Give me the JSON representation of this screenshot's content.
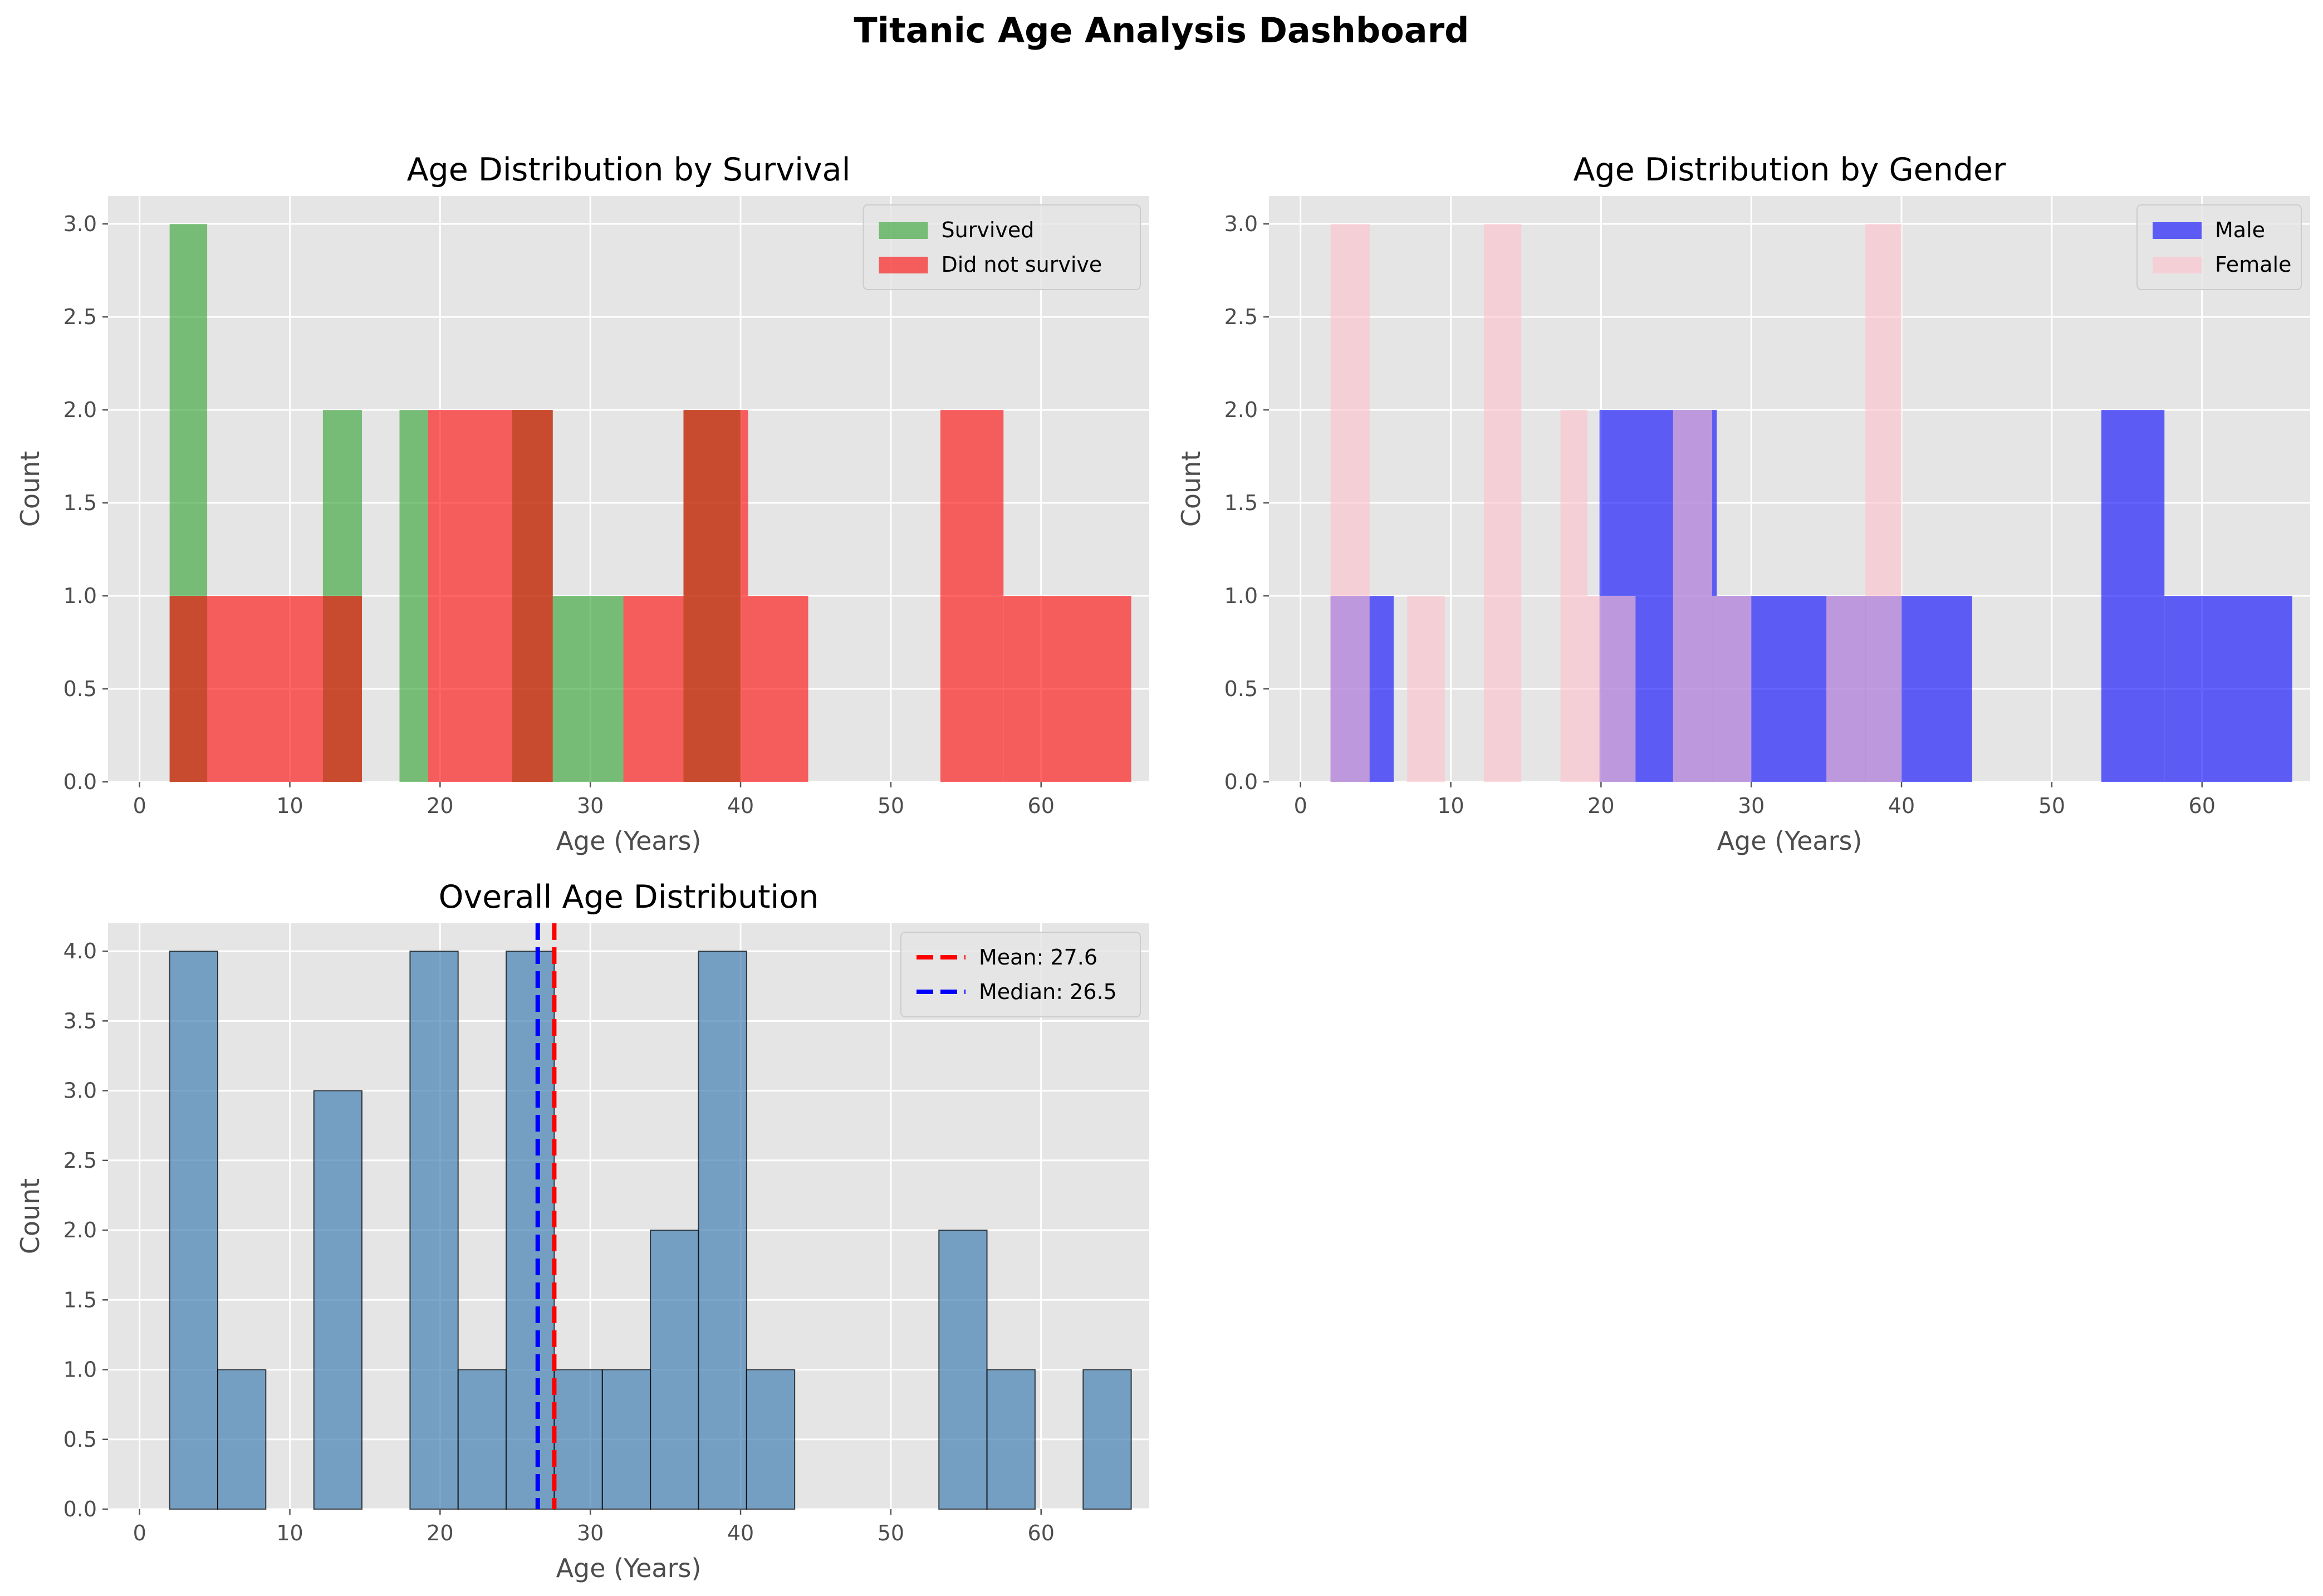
{
  "dashboard": {
    "title": "Titanic Age Analysis Dashboard"
  },
  "chart_data": [
    {
      "id": "survival",
      "type": "bar",
      "title": "Age Distribution by Survival",
      "xlabel": "Age (Years)",
      "ylabel": "Count",
      "xlim": [
        -2.1,
        67.2
      ],
      "ylim": [
        0,
        3.15
      ],
      "xticks": [
        0,
        10,
        20,
        30,
        40,
        50,
        60
      ],
      "yticks": [
        0.0,
        0.5,
        1.0,
        1.5,
        2.0,
        2.5,
        3.0
      ],
      "grid": true,
      "legend_position": "top-right",
      "series": [
        {
          "name": "Survived",
          "color": "#2ca02c",
          "opacity": 0.6,
          "bins": [
            {
              "x0": 2.0,
              "x1": 4.5,
              "count": 3
            },
            {
              "x0": 12.2,
              "x1": 14.8,
              "count": 2
            },
            {
              "x0": 17.3,
              "x1": 19.2,
              "count": 2
            },
            {
              "x0": 24.8,
              "x1": 27.5,
              "count": 2
            },
            {
              "x0": 27.5,
              "x1": 32.2,
              "count": 1
            },
            {
              "x0": 36.2,
              "x1": 40.0,
              "count": 2
            }
          ]
        },
        {
          "name": "Did not survive",
          "color": "#ff0000",
          "opacity": 0.6,
          "bins": [
            {
              "x0": 2.0,
              "x1": 12.2,
              "count": 1
            },
            {
              "x0": 12.2,
              "x1": 14.8,
              "count": 1
            },
            {
              "x0": 19.2,
              "x1": 24.8,
              "count": 2
            },
            {
              "x0": 24.8,
              "x1": 27.5,
              "count": 2
            },
            {
              "x0": 32.2,
              "x1": 36.2,
              "count": 1
            },
            {
              "x0": 36.2,
              "x1": 40.5,
              "count": 2
            },
            {
              "x0": 40.5,
              "x1": 44.5,
              "count": 1
            },
            {
              "x0": 53.3,
              "x1": 57.5,
              "count": 2
            },
            {
              "x0": 57.5,
              "x1": 66.0,
              "count": 1
            }
          ]
        }
      ]
    },
    {
      "id": "gender",
      "type": "bar",
      "title": "Age Distribution by Gender",
      "xlabel": "Age (Years)",
      "ylabel": "Count",
      "xlim": [
        -2.1,
        67.2
      ],
      "ylim": [
        0,
        3.15
      ],
      "xticks": [
        0,
        10,
        20,
        30,
        40,
        50,
        60
      ],
      "yticks": [
        0.0,
        0.5,
        1.0,
        1.5,
        2.0,
        2.5,
        3.0
      ],
      "grid": true,
      "legend_position": "top-right",
      "series": [
        {
          "name": "Male",
          "color": "#0000ff",
          "opacity": 0.6,
          "bins": [
            {
              "x0": 2.0,
              "x1": 6.2,
              "count": 1
            },
            {
              "x0": 19.9,
              "x1": 24.8,
              "count": 2
            },
            {
              "x0": 24.8,
              "x1": 27.7,
              "count": 2
            },
            {
              "x0": 27.7,
              "x1": 40.0,
              "count": 1
            },
            {
              "x0": 40.0,
              "x1": 44.7,
              "count": 1
            },
            {
              "x0": 53.3,
              "x1": 57.5,
              "count": 2
            },
            {
              "x0": 57.5,
              "x1": 66.0,
              "count": 1
            }
          ]
        },
        {
          "name": "Female",
          "color": "#ffc0cb",
          "opacity": 0.6,
          "bins": [
            {
              "x0": 2.0,
              "x1": 4.6,
              "count": 3
            },
            {
              "x0": 7.1,
              "x1": 9.6,
              "count": 1
            },
            {
              "x0": 12.2,
              "x1": 14.7,
              "count": 3
            },
            {
              "x0": 17.3,
              "x1": 19.1,
              "count": 2
            },
            {
              "x0": 19.1,
              "x1": 22.3,
              "count": 1
            },
            {
              "x0": 24.8,
              "x1": 27.4,
              "count": 2
            },
            {
              "x0": 27.4,
              "x1": 30.0,
              "count": 1
            },
            {
              "x0": 35.0,
              "x1": 37.6,
              "count": 1
            },
            {
              "x0": 37.6,
              "x1": 40.0,
              "count": 3
            }
          ]
        }
      ]
    },
    {
      "id": "overall",
      "type": "bar",
      "title": "Overall Age Distribution",
      "xlabel": "Age (Years)",
      "ylabel": "Count",
      "xlim": [
        -2.1,
        67.2
      ],
      "ylim": [
        0,
        4.2
      ],
      "xticks": [
        0,
        10,
        20,
        30,
        40,
        50,
        60
      ],
      "yticks": [
        0.0,
        0.5,
        1.0,
        1.5,
        2.0,
        2.5,
        3.0,
        3.5,
        4.0
      ],
      "grid": true,
      "legend_position": "top-right",
      "series": [
        {
          "name": "",
          "color": "#4682b4",
          "opacity": 0.7,
          "bins": [
            {
              "x0": 2.0,
              "x1": 5.2,
              "count": 4
            },
            {
              "x0": 5.2,
              "x1": 8.4,
              "count": 1
            },
            {
              "x0": 8.4,
              "x1": 11.6,
              "count": 0
            },
            {
              "x0": 11.6,
              "x1": 14.8,
              "count": 3
            },
            {
              "x0": 14.8,
              "x1": 18.0,
              "count": 0
            },
            {
              "x0": 18.0,
              "x1": 21.2,
              "count": 4
            },
            {
              "x0": 21.2,
              "x1": 24.4,
              "count": 1
            },
            {
              "x0": 24.4,
              "x1": 27.6,
              "count": 4
            },
            {
              "x0": 27.6,
              "x1": 30.8,
              "count": 1
            },
            {
              "x0": 30.8,
              "x1": 34.0,
              "count": 1
            },
            {
              "x0": 34.0,
              "x1": 37.2,
              "count": 2
            },
            {
              "x0": 37.2,
              "x1": 40.4,
              "count": 4
            },
            {
              "x0": 40.4,
              "x1": 43.6,
              "count": 1
            },
            {
              "x0": 43.6,
              "x1": 46.8,
              "count": 0
            },
            {
              "x0": 46.8,
              "x1": 50.0,
              "count": 0
            },
            {
              "x0": 50.0,
              "x1": 53.2,
              "count": 0
            },
            {
              "x0": 53.2,
              "x1": 56.4,
              "count": 2
            },
            {
              "x0": 56.4,
              "x1": 59.6,
              "count": 1
            },
            {
              "x0": 59.6,
              "x1": 62.8,
              "count": 0
            },
            {
              "x0": 62.8,
              "x1": 66.0,
              "count": 1
            }
          ]
        }
      ],
      "vlines": [
        {
          "label": "Mean: 27.6",
          "x": 27.6,
          "color": "#ff0000"
        },
        {
          "label": "Median: 26.5",
          "x": 26.5,
          "color": "#0000ff"
        }
      ]
    }
  ]
}
